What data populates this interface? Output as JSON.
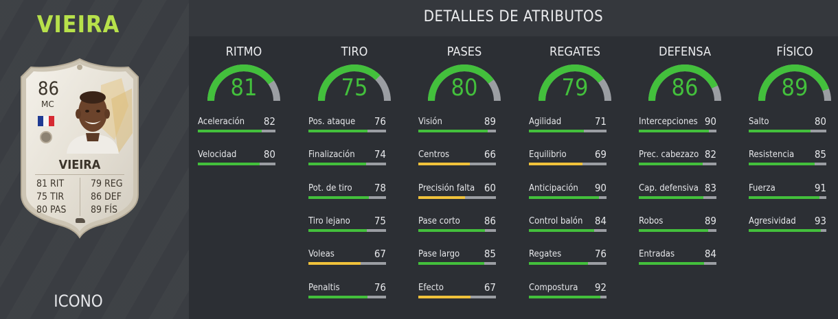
{
  "left": {
    "player_name": "VIEIRA",
    "card_type": "ICONO",
    "card": {
      "rating": "86",
      "position": "MC",
      "name": "VIEIRA",
      "stats": [
        {
          "value": "81",
          "label": "RIT"
        },
        {
          "value": "75",
          "label": "TIR"
        },
        {
          "value": "80",
          "label": "PAS"
        },
        {
          "value": "79",
          "label": "REG"
        },
        {
          "value": "86",
          "label": "DEF"
        },
        {
          "value": "89",
          "label": "FÍS"
        }
      ]
    }
  },
  "header": {
    "title": "DETALLES DE ATRIBUTOS"
  },
  "colors": {
    "green": "#43c03c",
    "yellow": "#f0c23b",
    "track": "#9b9ea3",
    "title_green": "#b7e14b"
  },
  "categories": [
    {
      "title": "RITMO",
      "value": 81,
      "attributes": [
        {
          "name": "Aceleración",
          "value": 82
        },
        {
          "name": "Velocidad",
          "value": 80
        }
      ]
    },
    {
      "title": "TIRO",
      "value": 75,
      "attributes": [
        {
          "name": "Pos. ataque",
          "value": 76
        },
        {
          "name": "Finalización",
          "value": 74
        },
        {
          "name": "Pot. de tiro",
          "value": 78
        },
        {
          "name": "Tiro lejano",
          "value": 75
        },
        {
          "name": "Voleas",
          "value": 67
        },
        {
          "name": "Penaltis",
          "value": 76
        }
      ]
    },
    {
      "title": "PASES",
      "value": 80,
      "attributes": [
        {
          "name": "Visión",
          "value": 89
        },
        {
          "name": "Centros",
          "value": 66
        },
        {
          "name": "Precisión falta",
          "value": 60
        },
        {
          "name": "Pase corto",
          "value": 86
        },
        {
          "name": "Pase largo",
          "value": 85
        },
        {
          "name": "Efecto",
          "value": 67
        }
      ]
    },
    {
      "title": "REGATES",
      "value": 79,
      "attributes": [
        {
          "name": "Agilidad",
          "value": 71
        },
        {
          "name": "Equilibrio",
          "value": 69
        },
        {
          "name": "Anticipación",
          "value": 90
        },
        {
          "name": "Control balón",
          "value": 84
        },
        {
          "name": "Regates",
          "value": 76
        },
        {
          "name": "Compostura",
          "value": 92
        }
      ]
    },
    {
      "title": "DEFENSA",
      "value": 86,
      "attributes": [
        {
          "name": "Intercepciones",
          "value": 90
        },
        {
          "name": "Prec. cabezazo",
          "value": 82
        },
        {
          "name": "Cap. defensiva",
          "value": 83
        },
        {
          "name": "Robos",
          "value": 89
        },
        {
          "name": "Entradas",
          "value": 84
        }
      ]
    },
    {
      "title": "FÍSICO",
      "value": 89,
      "attributes": [
        {
          "name": "Salto",
          "value": 80
        },
        {
          "name": "Resistencia",
          "value": 85
        },
        {
          "name": "Fuerza",
          "value": 91
        },
        {
          "name": "Agresividad",
          "value": 93
        }
      ]
    }
  ]
}
